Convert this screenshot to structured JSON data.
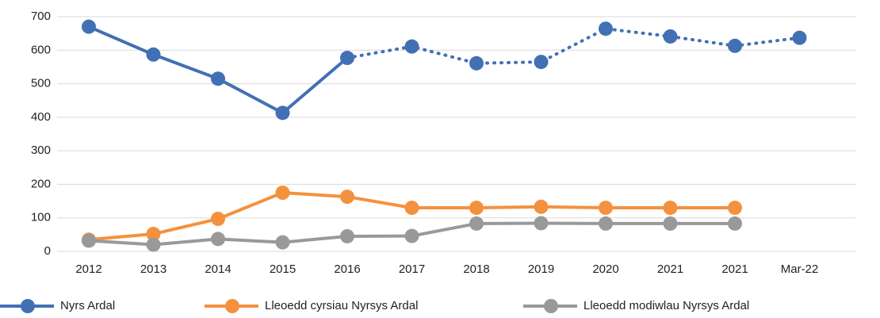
{
  "chart_data": {
    "type": "line",
    "categories": [
      "2012",
      "2013",
      "2014",
      "2015",
      "2016",
      "2017",
      "2018",
      "2019",
      "2020",
      "2021",
      "2021",
      "Mar-22"
    ],
    "series": [
      {
        "name": "Nyrs Ardal",
        "color": "#4270b4",
        "values": [
          670,
          587,
          515,
          413,
          577,
          611,
          561,
          565,
          664,
          641,
          613,
          637
        ],
        "dotted_from": 4
      },
      {
        "name": "Lleoedd cyrsiau Nyrsys Ardal",
        "color": "#f4913e",
        "values": [
          35,
          52,
          97,
          175,
          163,
          130,
          130,
          133,
          130,
          130,
          130,
          null
        ]
      },
      {
        "name": "Lleoedd modiwlau Nyrsys Ardal",
        "color": "#999999",
        "values": [
          32,
          20,
          37,
          27,
          45,
          46,
          83,
          84,
          83,
          83,
          83,
          null
        ]
      }
    ],
    "ylim": [
      0,
      700
    ],
    "yticks": [
      0,
      100,
      200,
      300,
      400,
      500,
      600,
      700
    ],
    "grid": true,
    "legend": "bottom"
  }
}
